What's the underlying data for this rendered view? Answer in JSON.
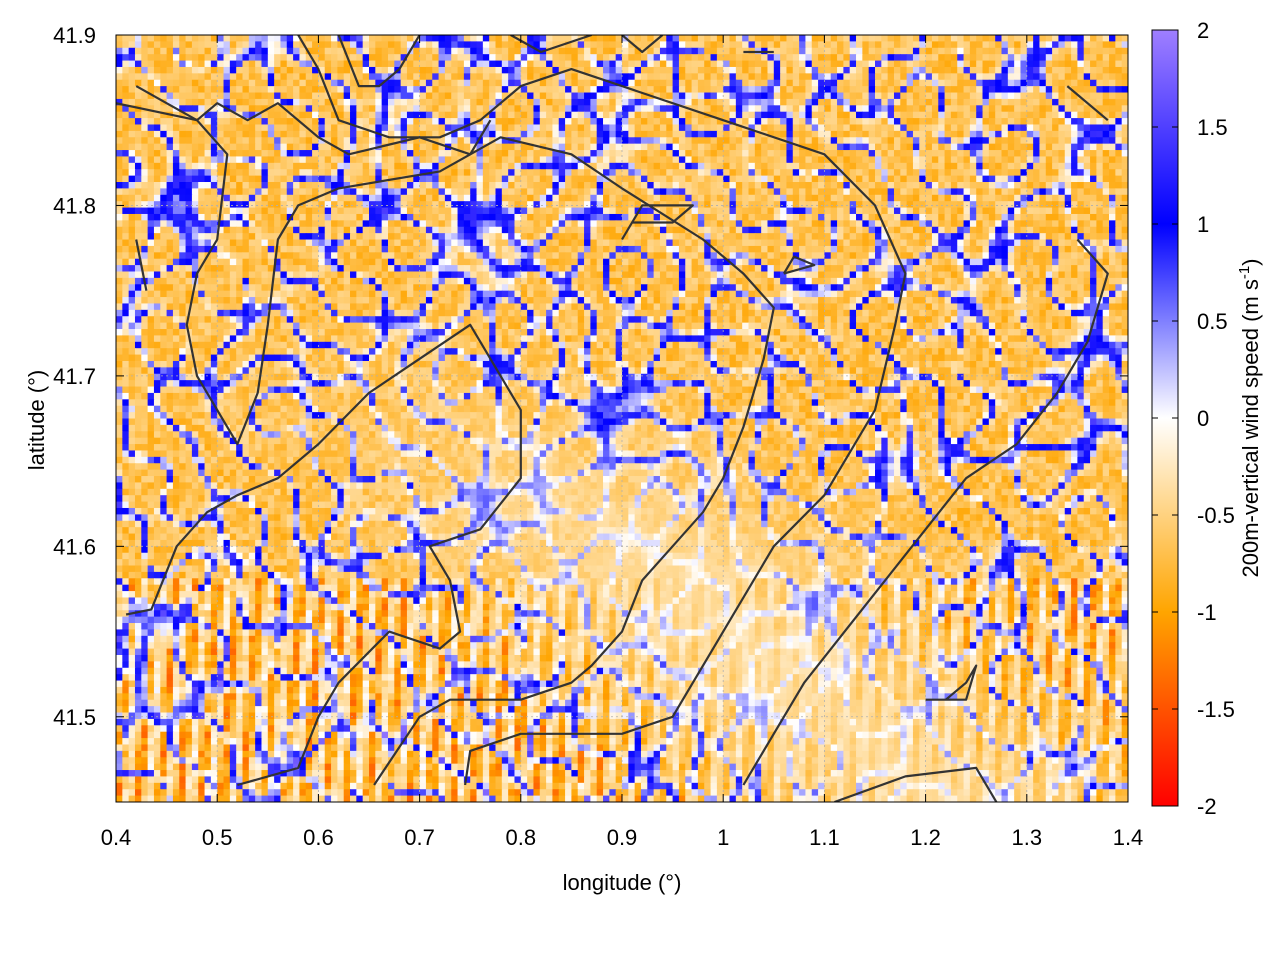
{
  "chart_data": {
    "type": "heatmap",
    "title": "",
    "xlabel": "longitude (°)",
    "ylabel": "latitude (°)",
    "xlim": [
      0.4,
      1.4
    ],
    "ylim": [
      41.45,
      41.9
    ],
    "x_ticks": [
      0.4,
      0.5,
      0.6,
      0.7,
      0.8,
      0.9,
      1.0,
      1.1,
      1.2,
      1.3,
      1.4
    ],
    "x_tick_labels": [
      "0.4",
      "0.5",
      "0.6",
      "0.7",
      "0.8",
      "0.9",
      "1",
      "1.1",
      "1.2",
      "1.3",
      "1.4"
    ],
    "y_ticks": [
      41.5,
      41.6,
      41.7,
      41.8,
      41.9
    ],
    "y_tick_labels": [
      "41.5",
      "41.6",
      "41.7",
      "41.8",
      "41.9"
    ],
    "grid": true,
    "colorbar": {
      "label": "200m-vertical wind speed (m s-1)",
      "label_main": "200m-vertical wind speed (m s",
      "label_sup": "-1",
      "label_end": ")",
      "range": [
        -2,
        2
      ],
      "ticks": [
        2,
        1.5,
        1,
        0.5,
        0,
        -0.5,
        -1,
        -1.5,
        -2
      ],
      "tick_labels": [
        "2",
        "1.5",
        "1",
        "0.5",
        "0",
        "-0.5",
        "-1",
        "-1.5",
        "-2"
      ],
      "colors": [
        "#ff0000",
        "#ffa500",
        "#ffffff",
        "#0000ff",
        "#9f7fff"
      ]
    },
    "contour_color": "#333333",
    "contours": [
      [
        [
          0.41,
          41.56
        ],
        [
          0.435,
          41.563
        ],
        [
          0.46,
          41.6
        ],
        [
          0.49,
          41.62
        ],
        [
          0.52,
          41.63
        ],
        [
          0.56,
          41.64
        ],
        [
          0.6,
          41.66
        ],
        [
          0.65,
          41.69
        ],
        [
          0.7,
          41.71
        ],
        [
          0.75,
          41.73
        ],
        [
          0.8,
          41.68
        ],
        [
          0.8,
          41.64
        ],
        [
          0.76,
          41.61
        ],
        [
          0.71,
          41.6
        ],
        [
          0.73,
          41.58
        ],
        [
          0.74,
          41.55
        ],
        [
          0.72,
          41.54
        ],
        [
          0.67,
          41.55
        ],
        [
          0.62,
          41.52
        ],
        [
          0.6,
          41.5
        ],
        [
          0.58,
          41.47
        ],
        [
          0.52,
          41.46
        ]
      ],
      [
        [
          0.655,
          41.46
        ],
        [
          0.7,
          41.5
        ],
        [
          0.73,
          41.51
        ],
        [
          0.8,
          41.51
        ],
        [
          0.85,
          41.52
        ],
        [
          0.87,
          41.53
        ],
        [
          0.9,
          41.55
        ],
        [
          0.92,
          41.58
        ],
        [
          0.95,
          41.6
        ],
        [
          0.98,
          41.62
        ],
        [
          1.0,
          41.64
        ],
        [
          1.02,
          41.67
        ],
        [
          1.04,
          41.71
        ],
        [
          1.05,
          41.74
        ],
        [
          1.02,
          41.76
        ],
        [
          0.98,
          41.78
        ],
        [
          0.9,
          41.81
        ],
        [
          0.85,
          41.83
        ],
        [
          0.78,
          41.84
        ],
        [
          0.72,
          41.82
        ],
        [
          0.62,
          41.81
        ],
        [
          0.58,
          41.8
        ],
        [
          0.56,
          41.78
        ],
        [
          0.55,
          41.73
        ],
        [
          0.54,
          41.69
        ],
        [
          0.52,
          41.66
        ],
        [
          0.48,
          41.7
        ],
        [
          0.47,
          41.73
        ],
        [
          0.48,
          41.76
        ],
        [
          0.5,
          41.78
        ],
        [
          0.51,
          41.83
        ],
        [
          0.48,
          41.85
        ],
        [
          0.4,
          41.86
        ]
      ],
      [
        [
          0.745,
          41.46
        ],
        [
          0.75,
          41.48
        ],
        [
          0.8,
          41.49
        ],
        [
          0.84,
          41.49
        ],
        [
          0.9,
          41.49
        ],
        [
          0.95,
          41.5
        ],
        [
          1.0,
          41.55
        ],
        [
          1.05,
          41.6
        ],
        [
          1.1,
          41.63
        ],
        [
          1.15,
          41.68
        ],
        [
          1.17,
          41.73
        ],
        [
          1.18,
          41.76
        ],
        [
          1.15,
          41.8
        ],
        [
          1.1,
          41.83
        ],
        [
          1.0,
          41.85
        ],
        [
          0.9,
          41.87
        ],
        [
          0.85,
          41.88
        ],
        [
          0.8,
          41.87
        ],
        [
          0.76,
          41.85
        ],
        [
          0.72,
          41.84
        ],
        [
          0.67,
          41.84
        ],
        [
          0.62,
          41.85
        ],
        [
          0.6,
          41.88
        ],
        [
          0.58,
          41.9
        ]
      ],
      [
        [
          1.02,
          41.46
        ],
        [
          1.05,
          41.49
        ],
        [
          1.08,
          41.52
        ],
        [
          1.12,
          41.55
        ],
        [
          1.16,
          41.58
        ],
        [
          1.2,
          41.61
        ],
        [
          1.24,
          41.64
        ],
        [
          1.29,
          41.66
        ],
        [
          1.33,
          41.69
        ],
        [
          1.36,
          41.72
        ],
        [
          1.38,
          41.76
        ],
        [
          1.35,
          41.78
        ]
      ],
      [
        [
          1.11,
          41.45
        ],
        [
          1.18,
          41.465
        ],
        [
          1.25,
          41.47
        ],
        [
          1.27,
          41.45
        ]
      ],
      [
        [
          1.2,
          41.51
        ],
        [
          1.24,
          41.51
        ],
        [
          1.25,
          41.53
        ],
        [
          1.24,
          41.52
        ],
        [
          1.22,
          41.51
        ]
      ],
      [
        [
          0.42,
          41.87
        ],
        [
          0.45,
          41.86
        ],
        [
          0.48,
          41.85
        ],
        [
          0.5,
          41.86
        ],
        [
          0.53,
          41.85
        ],
        [
          0.56,
          41.86
        ],
        [
          0.6,
          41.84
        ],
        [
          0.63,
          41.83
        ],
        [
          0.7,
          41.84
        ],
        [
          0.75,
          41.83
        ],
        [
          0.77,
          41.85
        ]
      ],
      [
        [
          0.62,
          41.9
        ],
        [
          0.64,
          41.87
        ],
        [
          0.66,
          41.87
        ],
        [
          0.68,
          41.88
        ],
        [
          0.7,
          41.9
        ]
      ],
      [
        [
          0.79,
          41.9
        ],
        [
          0.82,
          41.89
        ],
        [
          0.87,
          41.9
        ]
      ],
      [
        [
          0.9,
          41.9
        ],
        [
          0.92,
          41.89
        ],
        [
          0.94,
          41.9
        ]
      ],
      [
        [
          1.02,
          41.89
        ],
        [
          1.05,
          41.89
        ]
      ],
      [
        [
          0.9,
          41.78
        ],
        [
          0.92,
          41.8
        ],
        [
          0.97,
          41.8
        ],
        [
          0.95,
          41.79
        ],
        [
          0.91,
          41.79
        ]
      ],
      [
        [
          1.06,
          41.76
        ],
        [
          1.09,
          41.765
        ],
        [
          1.07,
          41.77
        ],
        [
          1.06,
          41.76
        ]
      ],
      [
        [
          1.34,
          41.87
        ],
        [
          1.38,
          41.85
        ]
      ],
      [
        [
          0.43,
          41.75
        ],
        [
          0.42,
          41.78
        ]
      ]
    ]
  }
}
